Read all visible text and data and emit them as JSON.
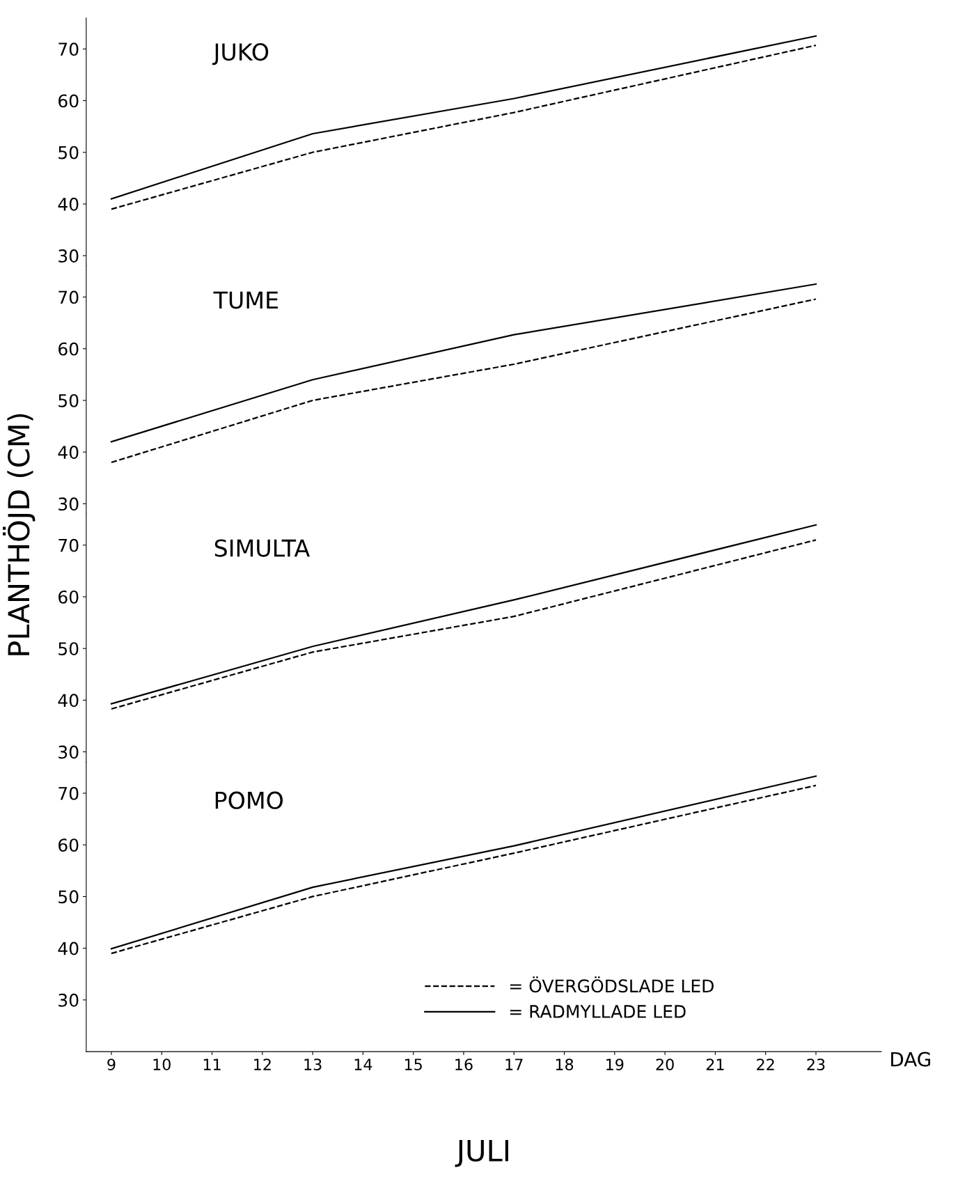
{
  "chart_data": [
    {
      "type": "line",
      "title": "JUKO",
      "ylabel": "PLANTHÖJD (CM)",
      "x": [
        9,
        13,
        17,
        23
      ],
      "xlim": [
        8.5,
        24.3
      ],
      "ylim": [
        28,
        76
      ],
      "yticks": [
        30,
        40,
        50,
        60,
        70
      ],
      "tick_labels": "y",
      "grid": false,
      "legend": false,
      "series": [
        {
          "color": "#000000",
          "line_style": "dashed",
          "values": [
            39,
            50,
            57.7,
            70.7
          ]
        },
        {
          "color": "#000000",
          "line_style": "solid",
          "values": [
            41,
            53.6,
            60.4,
            72.5
          ]
        }
      ]
    },
    {
      "type": "line",
      "title": "TUME",
      "x": [
        9,
        13,
        17,
        23
      ],
      "xlim": [
        8.5,
        24.3
      ],
      "ylim": [
        28,
        76
      ],
      "yticks": [
        30,
        40,
        50,
        60,
        70
      ],
      "tick_labels": "y",
      "grid": false,
      "legend": false,
      "series": [
        {
          "color": "#000000",
          "line_style": "dashed",
          "values": [
            38,
            50,
            57,
            69.6
          ]
        },
        {
          "color": "#000000",
          "line_style": "solid",
          "values": [
            42,
            54,
            62.7,
            72.5
          ]
        }
      ]
    },
    {
      "type": "line",
      "title": "SIMULTA",
      "x": [
        9,
        13,
        17,
        23
      ],
      "xlim": [
        8.5,
        24.3
      ],
      "ylim": [
        28,
        76
      ],
      "yticks": [
        30,
        40,
        50,
        60,
        70
      ],
      "tick_labels": "y",
      "grid": false,
      "legend": false,
      "series": [
        {
          "color": "#000000",
          "line_style": "dashed",
          "values": [
            38.3,
            49.3,
            56.2,
            71
          ]
        },
        {
          "color": "#000000",
          "line_style": "solid",
          "values": [
            39.3,
            50.4,
            59.4,
            73.9
          ]
        }
      ]
    },
    {
      "type": "line",
      "title": "POMO",
      "xlabel": "DAG",
      "annotations": [
        "JULI"
      ],
      "x": [
        9,
        13,
        17,
        23
      ],
      "xlim": [
        8.5,
        24.3
      ],
      "xticks": [
        9,
        10,
        11,
        12,
        13,
        14,
        15,
        16,
        17,
        18,
        19,
        20,
        21,
        22,
        23
      ],
      "ylim": [
        20,
        76
      ],
      "yticks": [
        30,
        40,
        50,
        60,
        70
      ],
      "grid": false,
      "legend": "bottom right",
      "series": [
        {
          "name": "= ÖVERGÖDSLADE LED",
          "color": "#000000",
          "line_style": "dashed",
          "values": [
            39,
            50,
            58.4,
            71.5
          ]
        },
        {
          "name": "= RADMYLLADE LED",
          "color": "#000000",
          "line_style": "solid",
          "values": [
            39.9,
            51.8,
            59.8,
            73.3
          ]
        }
      ]
    }
  ]
}
